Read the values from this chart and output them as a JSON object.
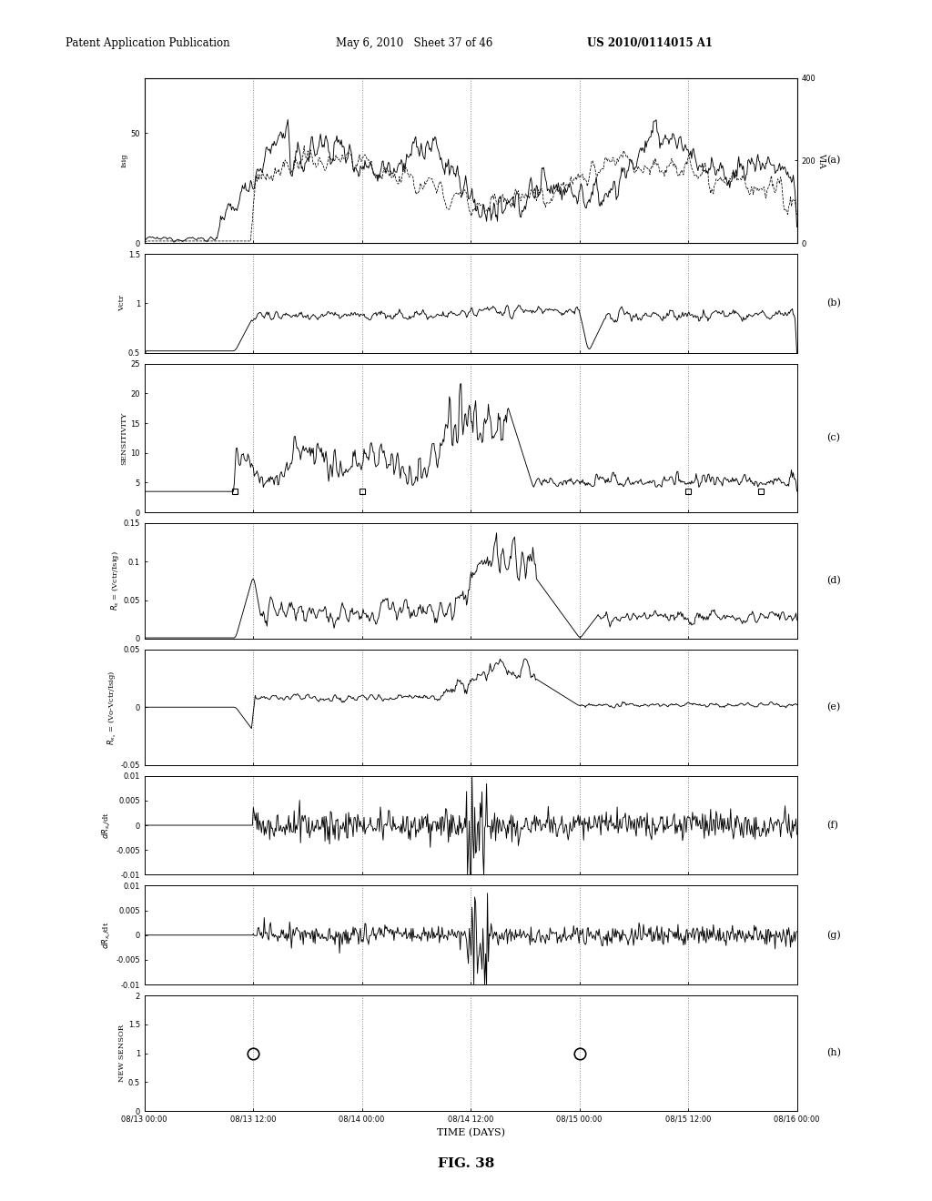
{
  "title": "FIG. 38",
  "header_left": "Patent Application Publication",
  "header_mid": "May 6, 2010   Sheet 37 of 46",
  "header_right": "US 2010/0114015 A1",
  "subplot_labels": [
    "(a)",
    "(b)",
    "(c)",
    "(d)",
    "(e)",
    "(f)",
    "(g)",
    "(h)"
  ],
  "x_label": "TIME (DAYS)",
  "x_ticks": [
    "08/13 00:00",
    "08/13 12:00",
    "08/14 00:00",
    "08/14 12:00",
    "08/15 00:00",
    "08/15 12:00",
    "08/16 00:00"
  ],
  "x_vals": [
    0,
    12,
    24,
    36,
    48,
    60,
    72
  ],
  "dashed_vlines": [
    12,
    24,
    36,
    48,
    60
  ],
  "subplots": [
    {
      "ylabel": "Isig",
      "ylabel2": "VIA",
      "ylim": [
        0,
        75
      ],
      "ylim2": [
        0,
        400
      ],
      "yticks": [
        0,
        50
      ],
      "yticks2": [
        0,
        200,
        400
      ],
      "ytick_labels": [
        "0",
        "50"
      ],
      "ytick_labels2": [
        "0",
        "200",
        "400"
      ]
    },
    {
      "ylabel": "Vctr",
      "ylim": [
        0.5,
        1.5
      ],
      "yticks": [
        0.5,
        1.0,
        1.5
      ],
      "ytick_labels": [
        "0.5",
        "1",
        "1.5"
      ]
    },
    {
      "ylabel": "SENSITIVITY",
      "ylim": [
        0,
        25
      ],
      "yticks": [
        0,
        5,
        10,
        15,
        20,
        25
      ],
      "ytick_labels": [
        "0",
        "5",
        "10",
        "15",
        "20",
        "25"
      ]
    },
    {
      "ylabel": "R_s = (Vctr/Isig)",
      "ylim": [
        0,
        0.15
      ],
      "yticks": [
        0,
        0.05,
        0.1,
        0.15
      ],
      "ytick_labels": [
        "0",
        "0.05",
        "0.1",
        "0.15"
      ]
    },
    {
      "ylabel": "R_x = (Vo-Vctr/Isig)",
      "ylim": [
        -0.05,
        0.05
      ],
      "yticks": [
        -0.05,
        0,
        0.05
      ],
      "ytick_labels": [
        "-0.05",
        "0",
        "0.05"
      ]
    },
    {
      "ylabel": "dR_s/dt",
      "ylim": [
        -0.01,
        0.01
      ],
      "yticks": [
        -0.01,
        -0.005,
        0,
        0.005,
        0.01
      ],
      "ytick_labels": [
        "-0.01",
        "-0.005",
        "0",
        "0.005",
        "0.01"
      ]
    },
    {
      "ylabel": "dR_x/dt",
      "ylim": [
        -0.01,
        0.01
      ],
      "yticks": [
        -0.01,
        -0.005,
        0,
        0.005,
        0.01
      ],
      "ytick_labels": [
        "-0.01",
        "-0.005",
        "0",
        "0.005",
        "0.01"
      ]
    },
    {
      "ylabel": "NEW SENSOR",
      "ylim": [
        0,
        2
      ],
      "yticks": [
        0,
        0.5,
        1.0,
        1.5,
        2.0
      ],
      "ytick_labels": [
        "0",
        "0.5",
        "1",
        "1.5",
        "2"
      ]
    }
  ],
  "background_color": "#ffffff",
  "plot_bg": "#ffffff",
  "line_color": "#000000",
  "vline_color": "#888888",
  "ns_events": [
    12,
    48
  ],
  "sens_squares": [
    10,
    24,
    60,
    68
  ]
}
